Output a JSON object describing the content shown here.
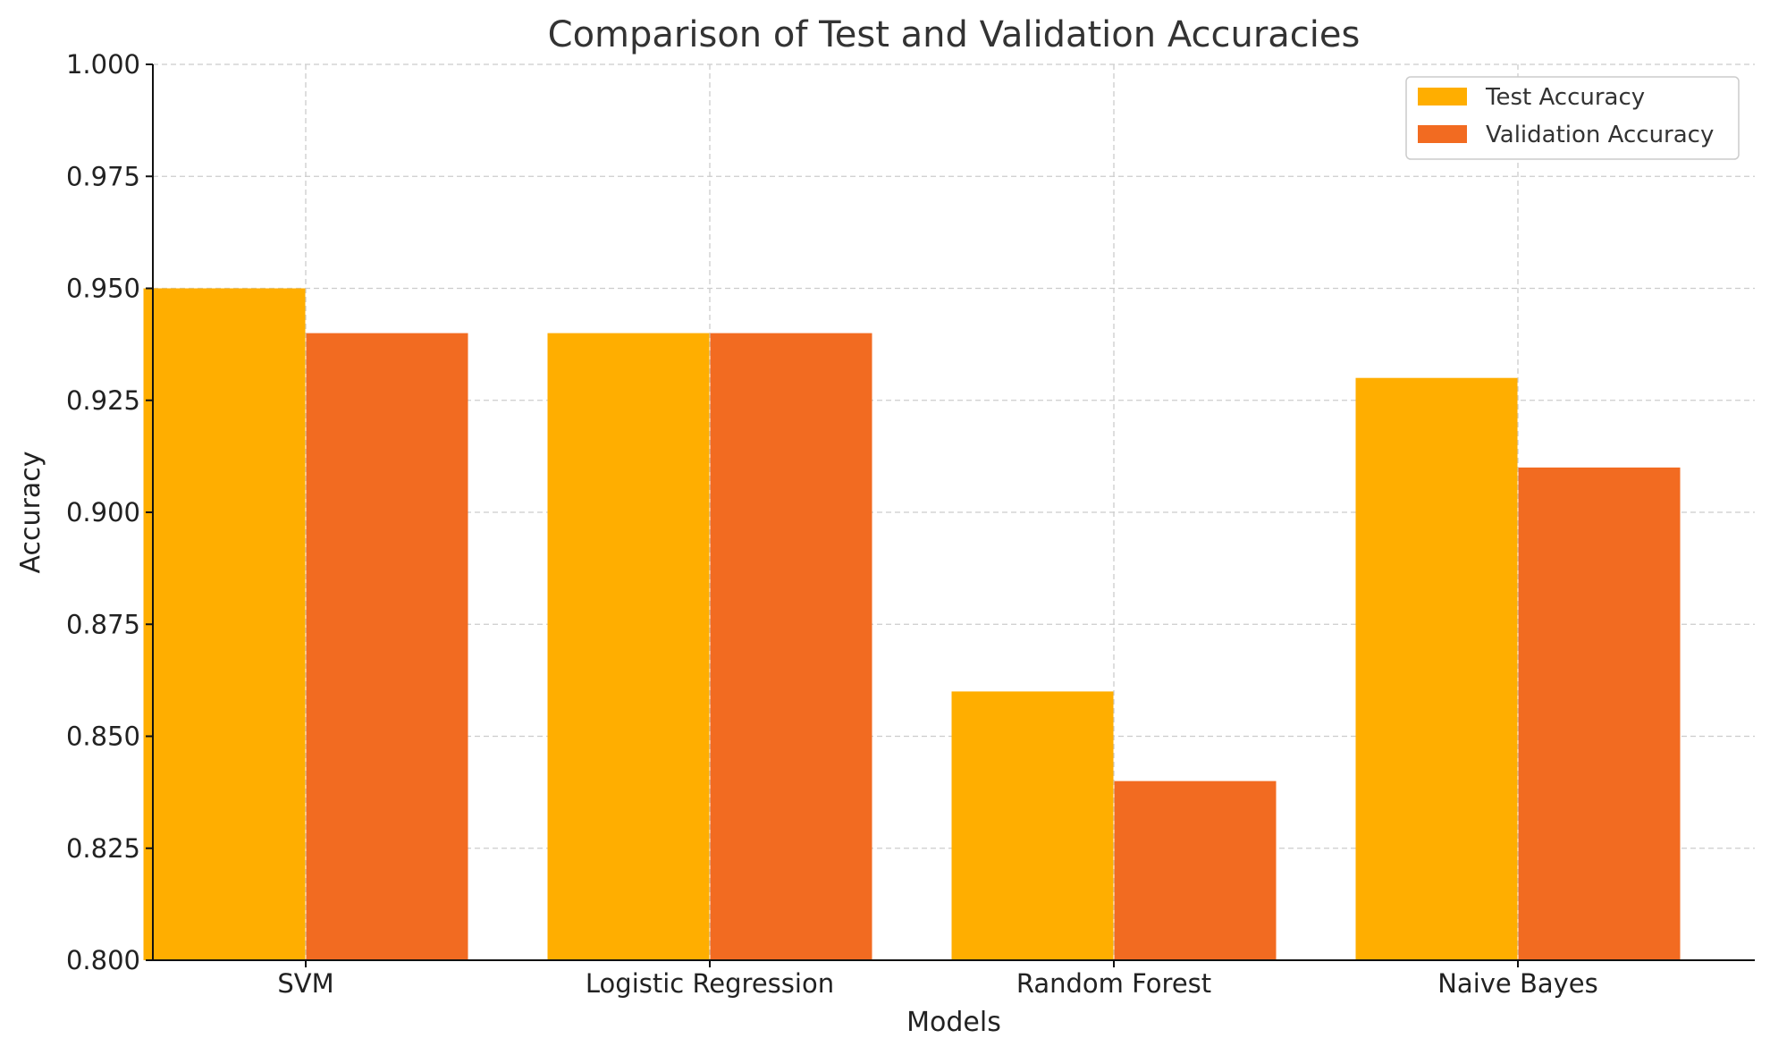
{
  "chart_data": {
    "type": "bar",
    "title": "Comparison of Test and Validation Accuracies",
    "xlabel": "Models",
    "ylabel": "Accuracy",
    "categories": [
      "SVM",
      "Logistic Regression",
      "Random Forest",
      "Naive Bayes"
    ],
    "series": [
      {
        "name": "Test Accuracy",
        "values": [
          0.95,
          0.94,
          0.86,
          0.93
        ],
        "color": "#FFAE00"
      },
      {
        "name": "Validation Accuracy",
        "values": [
          0.94,
          0.94,
          0.84,
          0.91
        ],
        "color": "#F26B21"
      }
    ],
    "ylim": [
      0.8,
      1.0
    ],
    "yticks": [
      "0.800",
      "0.825",
      "0.850",
      "0.875",
      "0.900",
      "0.925",
      "0.950",
      "0.975",
      "1.000"
    ],
    "grid": true,
    "legend_position": "top-right"
  }
}
